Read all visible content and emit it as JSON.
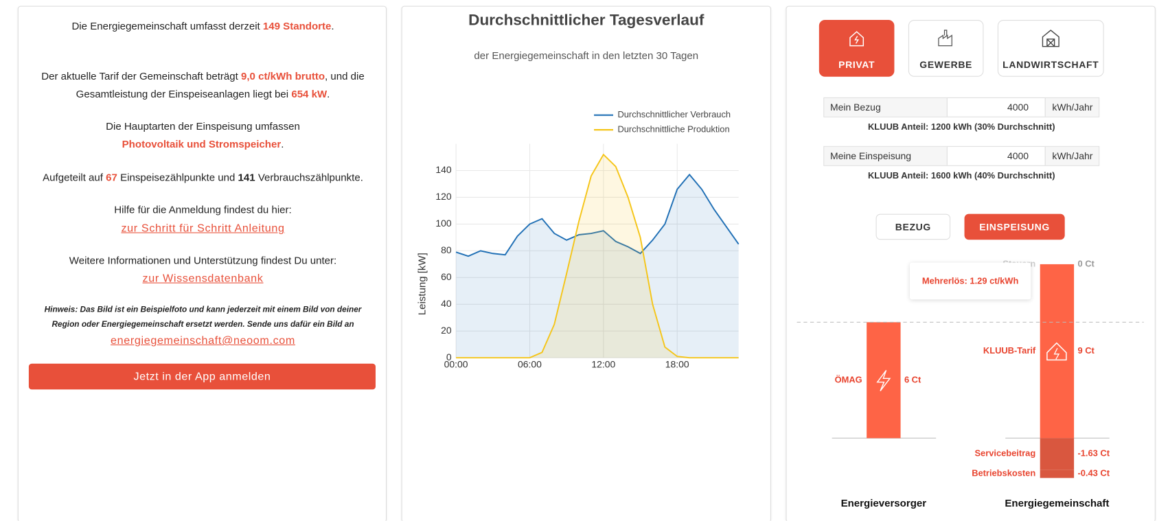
{
  "info": {
    "paragraphs": [
      [
        "Die Energiegemeinschaft umfasst derzeit ",
        "149 Standorte",
        "."
      ],
      [
        "Der aktuelle Tarif der Gemeinschaft beträgt ",
        "9,0 ct/kWh brutto",
        ", und die Gesamtleistung der Einspeiseanlagen liegt bei ",
        "654 kW",
        "."
      ],
      [
        "Die Hauptarten der Einspeisung umfassen ",
        "Photovoltaik und Stromspeicher",
        "."
      ],
      [
        "Aufgeteilt auf ",
        "67",
        " Einspeisezählpunkte und ",
        "141",
        " Verbrauchszählpunkte."
      ]
    ],
    "help_text": "Hilfe für die Anmeldung findest du hier:",
    "help_link": "zur Schritt für Schritt Anleitung",
    "more_text": "Weitere Informationen und Unterstützung findest Du unter:",
    "more_link": "zur Wissensdatenbank",
    "note": "Hinweis: Das Bild ist ein Beispielfoto und kann jederzeit mit einem Bild von deiner Region oder Energiegemeinschaft ersetzt werden. Sende uns dafür ein Bild an",
    "email": "energiegemeinschaft@neoom.com",
    "button": "Jetzt in der App anmelden"
  },
  "calculator": {
    "tabs": [
      "PRIVAT",
      "GEWERBE",
      "LANDWIRTSCHAFT"
    ],
    "inputs": [
      {
        "label": "Mein Bezug",
        "value": 4000,
        "unit": "kWh/Jahr",
        "note": "KLUUB Anteil: 1200 kWh (30% Durchschnitt)"
      },
      {
        "label": "Meine Einspeisung",
        "value": 4000,
        "unit": "kWh/Jahr",
        "note": "KLUUB Anteil: 1600 kWh (40% Durchschnitt)"
      }
    ],
    "modes": [
      "BEZUG",
      "EINSPEISUNG"
    ]
  },
  "chart_data": [
    {
      "type": "line",
      "title": "Durchschnittlicher Tagesverlauf",
      "subtitle": "der Energiegemeinschaft in den letzten 30 Tagen",
      "y_label": "Leistung [kW]",
      "x": [
        0,
        1,
        2,
        3,
        4,
        5,
        6,
        7,
        8,
        9,
        10,
        11,
        12,
        13,
        14,
        15,
        16,
        17,
        18,
        19,
        20,
        21,
        22,
        23
      ],
      "xlim": [
        0,
        23
      ],
      "xticks": [
        {
          "value": 0,
          "label": "00:00"
        },
        {
          "value": 6,
          "label": "06:00"
        },
        {
          "value": 12,
          "label": "12:00"
        },
        {
          "value": 18,
          "label": "18:00"
        }
      ],
      "ylim": [
        0,
        160
      ],
      "yticks": [
        0,
        20,
        40,
        60,
        80,
        100,
        120,
        140
      ],
      "grid": true,
      "legend": "top-right",
      "series": [
        {
          "name": "Durchschnittlicher Verbrauch",
          "color": "#1f6fb5",
          "values": [
            79,
            76,
            80,
            78,
            77,
            91,
            100,
            104,
            93,
            88,
            92,
            93,
            95,
            87,
            83,
            78,
            88,
            100,
            126,
            137,
            126,
            111,
            98,
            85
          ]
        },
        {
          "name": "Durchschnittliche Produktion",
          "color": "#f5c518",
          "values": [
            0,
            0,
            0,
            0,
            0,
            0,
            0,
            4,
            25,
            63,
            102,
            136,
            152,
            143,
            120,
            90,
            40,
            8,
            1,
            0,
            0,
            0,
            0,
            0
          ]
        }
      ]
    },
    {
      "type": "bar",
      "categories": [
        "Energieversorger",
        "Energiegemeinschaft"
      ],
      "ylim": [
        -3,
        10
      ],
      "series": [
        {
          "name": "ÖMAG",
          "color": "#fe6446",
          "values": [
            6,
            null
          ],
          "value_labels": [
            "6 Ct",
            null
          ]
        },
        {
          "name": "KLUUB-Tarif",
          "color": "#fe6446",
          "values": [
            null,
            9
          ],
          "value_labels": [
            null,
            "9 Ct"
          ]
        },
        {
          "name": "Steuern",
          "color": "#fe6446",
          "values": [
            null,
            0
          ],
          "value_labels": [
            null,
            "0 Ct"
          ]
        },
        {
          "name": "Servicebeitrag",
          "color": "#d9573f",
          "values": [
            null,
            -1.63
          ],
          "value_labels": [
            null,
            "-1.63 Ct"
          ]
        },
        {
          "name": "Betriebskosten",
          "color": "#d9573f",
          "values": [
            null,
            -0.43
          ],
          "value_labels": [
            null,
            "-0.43 Ct"
          ]
        }
      ],
      "annotation": "Mehrerlös: 1.29 ct/kWh"
    }
  ]
}
